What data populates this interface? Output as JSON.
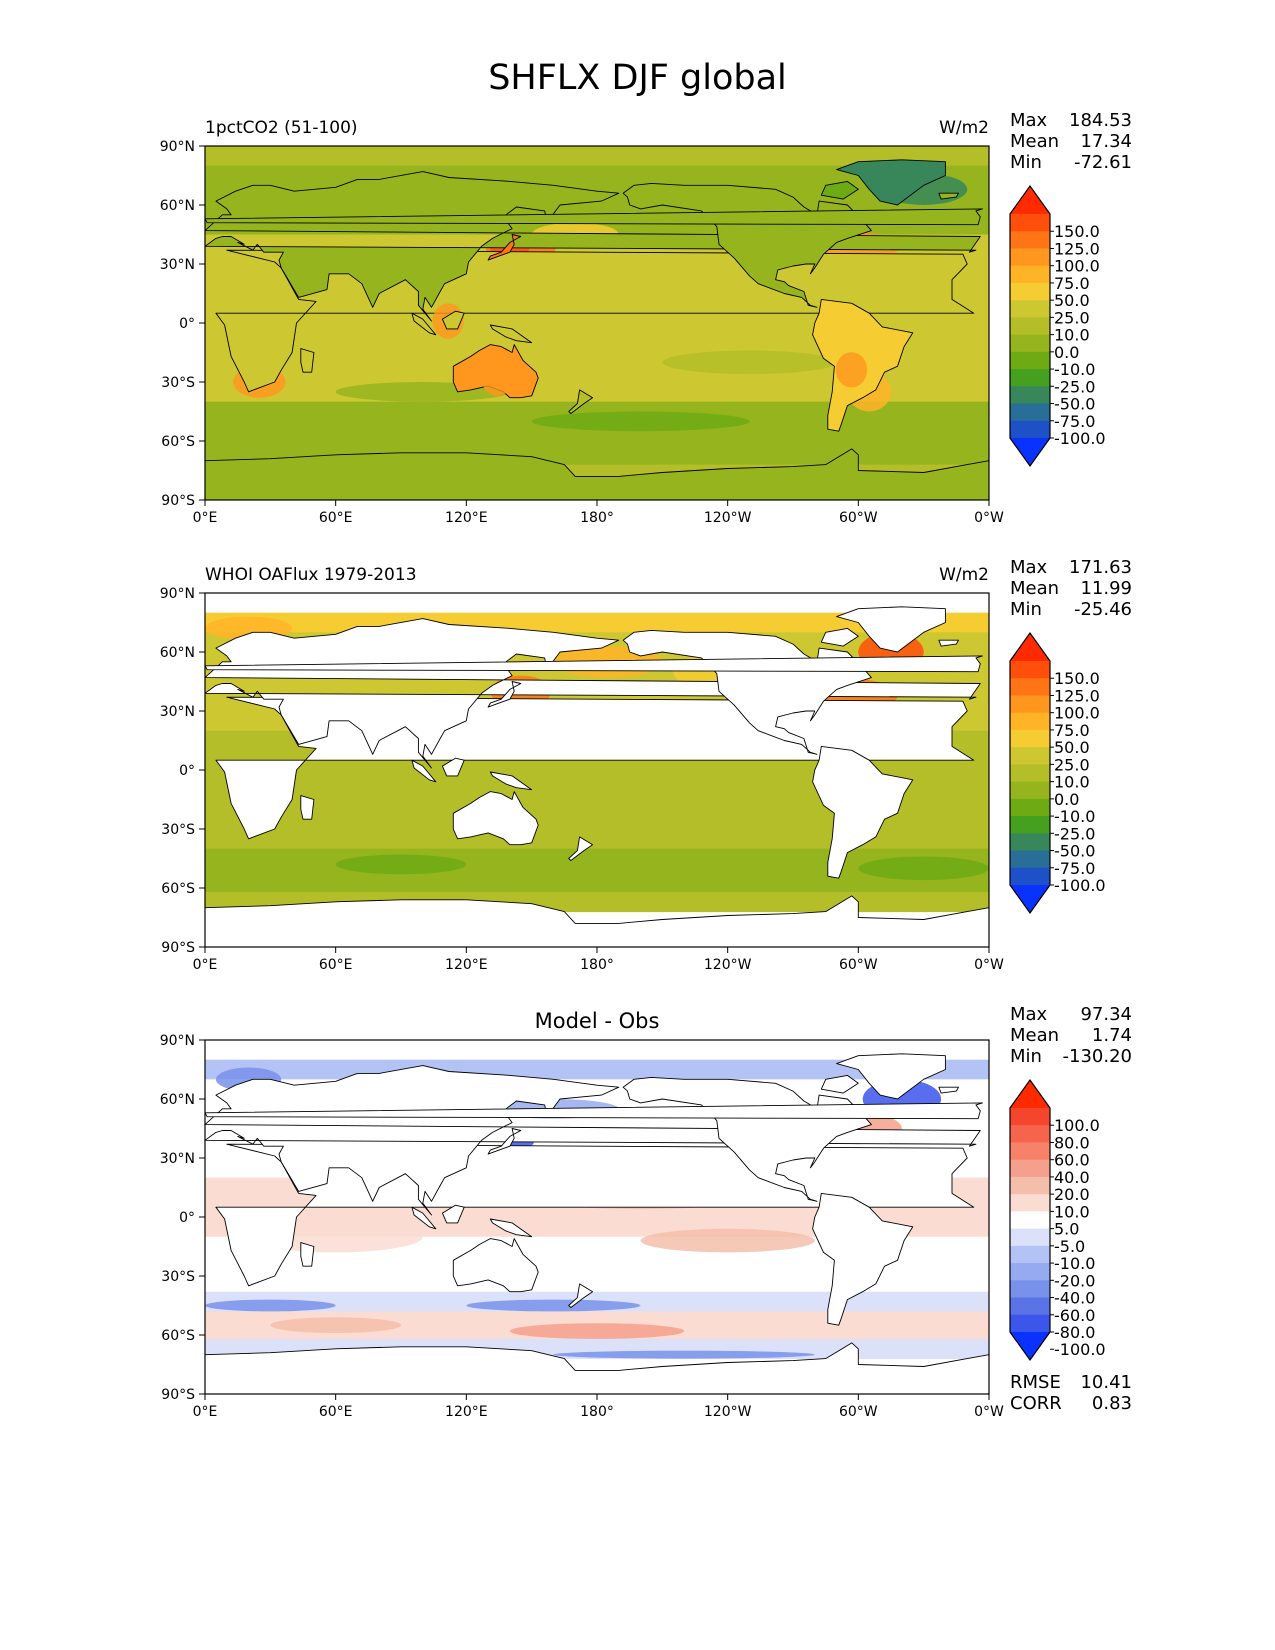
{
  "title": "SHFLX DJF global",
  "chart_data": [
    {
      "type": "heatmap",
      "title": "1pctCO2 (51-100)",
      "units": "W/m2",
      "stats": {
        "Max": "184.53",
        "Mean": "17.34",
        "Min": "-72.61"
      },
      "xticks": [
        "0°E",
        "60°E",
        "120°E",
        "180°",
        "120°W",
        "60°W",
        "0°W"
      ],
      "yticks": [
        "90°N",
        "60°N",
        "30°N",
        "0°",
        "30°S",
        "60°S",
        "90°S"
      ],
      "xlim": [
        0,
        360
      ],
      "ylim": [
        -90,
        90
      ],
      "colorbar": {
        "labels": [
          "150.0",
          "125.0",
          "100.0",
          "75.0",
          "50.0",
          "25.0",
          "10.0",
          "0.0",
          "-10.0",
          "-25.0",
          "-50.0",
          "-75.0",
          "-100.0"
        ],
        "colors": [
          "#ff2a00",
          "#ff4f0a",
          "#ff7414",
          "#ff961e",
          "#ffb428",
          "#f5cd32",
          "#cdc832",
          "#b4be28",
          "#96b41e",
          "#6eaa14",
          "#46a020",
          "#37875a",
          "#286e96",
          "#1e50c8",
          "#0a32ff"
        ]
      }
    },
    {
      "type": "heatmap",
      "title": "WHOI OAFlux 1979-2013",
      "units": "W/m2",
      "stats": {
        "Max": "171.63",
        "Mean": "11.99",
        "Min": "-25.46"
      },
      "xticks": [
        "0°E",
        "60°E",
        "120°E",
        "180°",
        "120°W",
        "60°W",
        "0°W"
      ],
      "yticks": [
        "90°N",
        "60°N",
        "30°N",
        "0°",
        "30°S",
        "60°S",
        "90°S"
      ],
      "xlim": [
        0,
        360
      ],
      "ylim": [
        -90,
        90
      ],
      "colorbar": {
        "labels": [
          "150.0",
          "125.0",
          "100.0",
          "75.0",
          "50.0",
          "25.0",
          "10.0",
          "0.0",
          "-10.0",
          "-25.0",
          "-50.0",
          "-75.0",
          "-100.0"
        ],
        "colors": [
          "#ff2a00",
          "#ff4f0a",
          "#ff7414",
          "#ff961e",
          "#ffb428",
          "#f5cd32",
          "#cdc832",
          "#b4be28",
          "#96b41e",
          "#6eaa14",
          "#46a020",
          "#37875a",
          "#286e96",
          "#1e50c8",
          "#0a32ff"
        ]
      }
    },
    {
      "type": "heatmap",
      "title": "Model - Obs",
      "units": "",
      "stats": {
        "Max": "97.34",
        "Mean": "1.74",
        "Min": "-130.20"
      },
      "footer": {
        "RMSE": "10.41",
        "CORR": "0.83"
      },
      "xticks": [
        "0°E",
        "60°E",
        "120°E",
        "180°",
        "120°W",
        "60°W",
        "0°W"
      ],
      "yticks": [
        "90°N",
        "60°N",
        "30°N",
        "0°",
        "30°S",
        "60°S",
        "90°S"
      ],
      "xlim": [
        0,
        360
      ],
      "ylim": [
        -90,
        90
      ],
      "colorbar": {
        "labels": [
          "100.0",
          "80.0",
          "60.0",
          "40.0",
          "20.0",
          "10.0",
          "5.0",
          "-5.0",
          "-10.0",
          "-20.0",
          "-40.0",
          "-60.0",
          "-80.0",
          "-100.0"
        ],
        "colors": [
          "#ff2a00",
          "#f5462d",
          "#f5644b",
          "#f58269",
          "#f5a08c",
          "#f5beaa",
          "#fadcd2",
          "#ffffff",
          "#dce1fa",
          "#b4c3f5",
          "#96aaf0",
          "#7891eb",
          "#5a73e6",
          "#3c55eb",
          "#0a32ff"
        ]
      }
    }
  ]
}
